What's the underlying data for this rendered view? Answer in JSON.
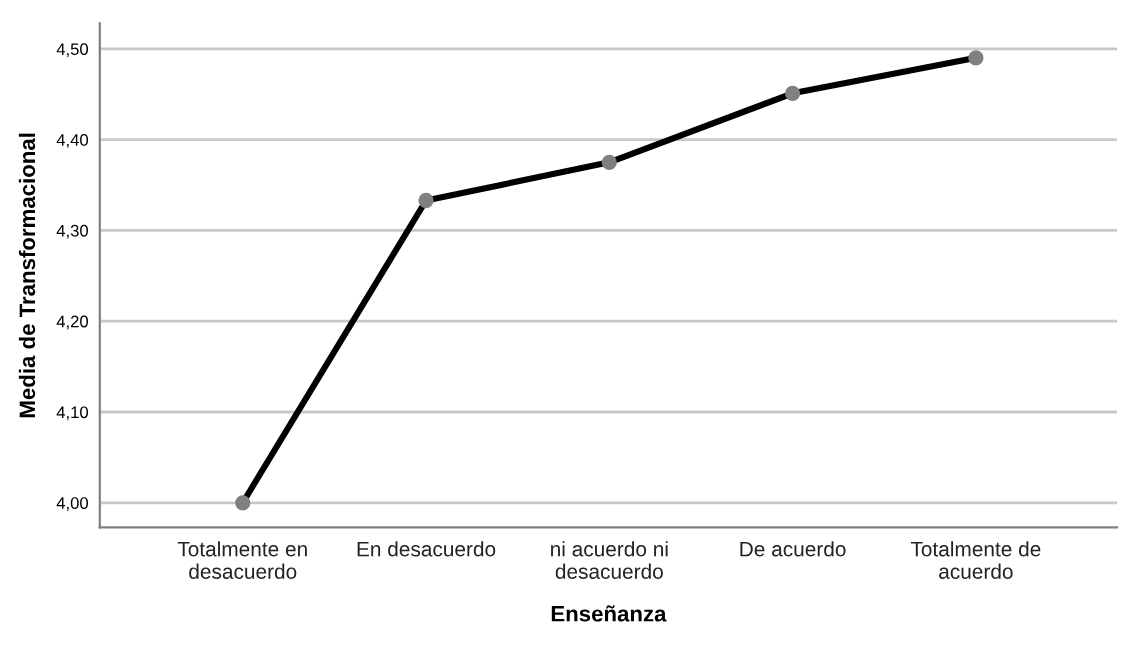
{
  "chart_data": {
    "type": "line",
    "xlabel": "Enseñanza",
    "ylabel": "Media de Transformacional",
    "categories": [
      "Totalmente en desacuerdo",
      "En desacuerdo",
      "ni acuerdo ni desacuerdo",
      "De acuerdo",
      "Totalmente de acuerdo"
    ],
    "series": [
      {
        "color": "#000000",
        "values": [
          4.0,
          4.333,
          4.375,
          4.451,
          4.49
        ]
      }
    ],
    "ylim": [
      3.973,
      4.528
    ],
    "yticks": [
      {
        "value": 4.0,
        "label": "4,00"
      },
      {
        "value": 4.1,
        "label": "4,10"
      },
      {
        "value": 4.2,
        "label": "4,20"
      },
      {
        "value": 4.3,
        "label": "4,30"
      },
      {
        "value": 4.4,
        "label": "4,40"
      },
      {
        "value": 4.5,
        "label": "4,50"
      }
    ],
    "grid": "y",
    "marker": "circle",
    "line_style": "solid"
  }
}
